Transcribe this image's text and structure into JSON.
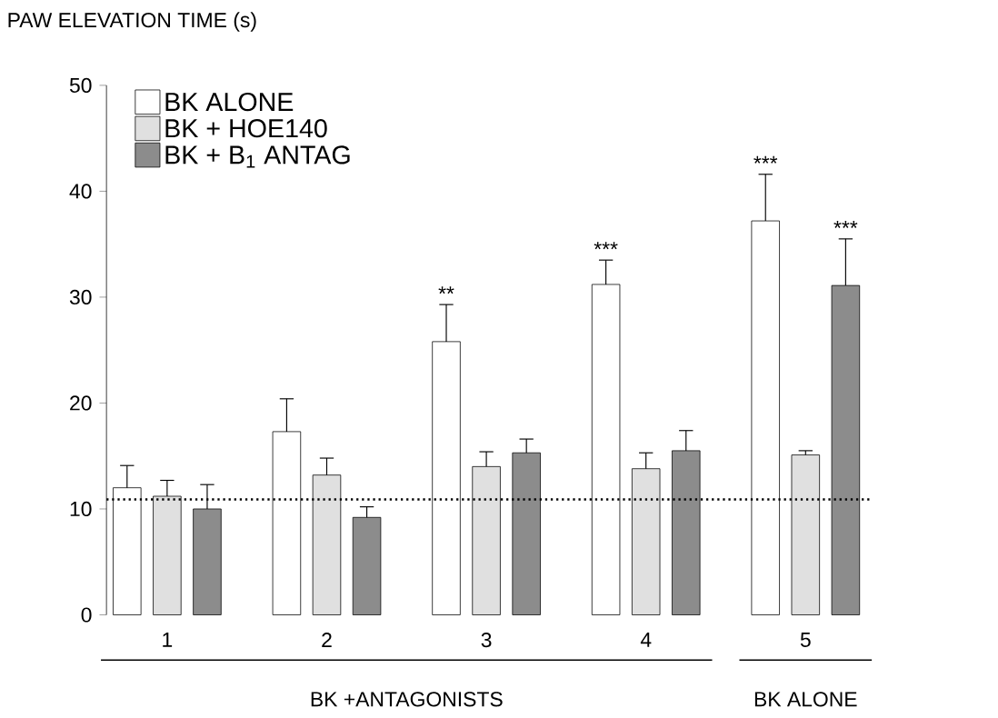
{
  "chart_data": {
    "type": "bar",
    "ylabel": "PAW ELEVATION TIME (s)",
    "categories": [
      "1",
      "2",
      "3",
      "4",
      "5"
    ],
    "series": [
      {
        "name": "BK ALONE",
        "color": "#ffffff",
        "values": [
          12.0,
          17.3,
          25.8,
          31.2,
          37.2
        ],
        "errors": [
          [
            12.0,
            14.1
          ],
          [
            17.3,
            20.4
          ],
          [
            25.8,
            29.3
          ],
          [
            31.2,
            33.5
          ],
          [
            37.2,
            41.6
          ]
        ]
      },
      {
        "name": "BK + HOE140",
        "color": "#e0e0e0",
        "values": [
          11.2,
          13.2,
          14.0,
          13.8,
          15.1
        ],
        "errors": [
          [
            11.2,
            12.7
          ],
          [
            13.2,
            14.8
          ],
          [
            14.0,
            15.4
          ],
          [
            13.8,
            15.3
          ],
          [
            15.1,
            15.5
          ]
        ]
      },
      {
        "name": "BK + B$_{1}$ ANTAG",
        "color": "#8c8c8c",
        "values": [
          10.0,
          9.2,
          15.3,
          15.5,
          31.1
        ],
        "errors": [
          [
            10.0,
            12.3
          ],
          [
            9.2,
            10.2
          ],
          [
            15.3,
            16.6
          ],
          [
            15.5,
            17.4
          ],
          [
            31.1,
            35.5
          ]
        ]
      }
    ],
    "ylim": [
      0,
      50
    ],
    "yticks": [
      0,
      10,
      20,
      30,
      40,
      50
    ],
    "grid": false,
    "legend": "top left",
    "ref_lines": [
      {
        "axis": "y",
        "value": 10.9,
        "line_style": "dotted"
      }
    ],
    "annotations": [
      "**",
      "***",
      "***",
      "***",
      "BK +ANTAGONISTS",
      "BK ALONE"
    ]
  }
}
